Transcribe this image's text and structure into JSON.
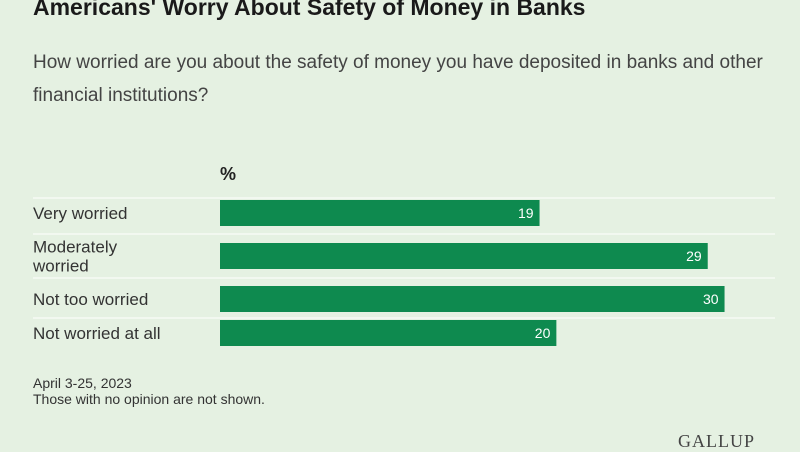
{
  "title": "Americans' Worry About Safety of Money in Banks",
  "subtitle": "How worried are you about the safety of money you have deposited in banks and other financial institutions?",
  "footnote": {
    "date": "April 3-25, 2023",
    "note": "Those with no opinion are not shown."
  },
  "logo": "GALLUP",
  "colors": {
    "background": "#e5f1e2",
    "bar": "#0e8a4f",
    "separator": "#ffffff"
  },
  "chart_data": {
    "type": "bar",
    "orientation": "horizontal",
    "unit_label": "%",
    "categories": [
      [
        "Very worried"
      ],
      [
        "Moderately",
        "worried"
      ],
      [
        "Not too worried"
      ],
      [
        "Not worried at all"
      ]
    ],
    "values": [
      19,
      29,
      30,
      20
    ],
    "xlim": [
      0,
      33
    ],
    "grid": false,
    "legend": "none"
  }
}
